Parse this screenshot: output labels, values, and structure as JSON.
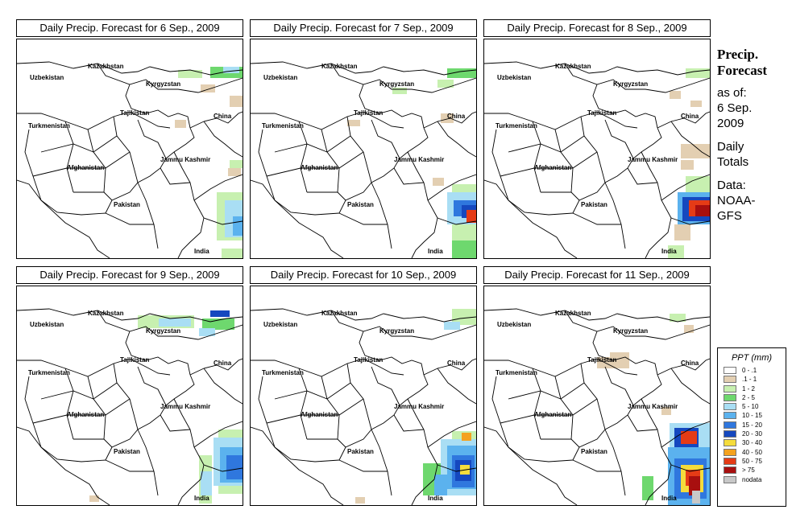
{
  "panels": [
    {
      "title": "Daily Precip. Forecast for  6 Sep., 2009"
    },
    {
      "title": "Daily Precip. Forecast for  7 Sep., 2009"
    },
    {
      "title": "Daily Precip. Forecast for  8 Sep., 2009"
    },
    {
      "title": "Daily Precip. Forecast for  9 Sep., 2009"
    },
    {
      "title": "Daily Precip. Forecast for  10 Sep., 2009"
    },
    {
      "title": "Daily Precip. Forecast for  11 Sep., 2009"
    }
  ],
  "map_labels": {
    "kazakhstan": "Kazakhstan",
    "uzbekistan": "Uzbekistan",
    "kyrgyzstan": "Kyrgyzstan",
    "tajikistan": "Tajikistan",
    "turkmenistan": "Turkmenistan",
    "china": "China",
    "jammu_kashmir": "Jammu Kashmir",
    "afghanistan": "Afghanistan",
    "pakistan": "Pakistan",
    "india": "India"
  },
  "sidebar": {
    "title_line1": "Precip.",
    "title_line2": "Forecast",
    "asof_line1": "as of:",
    "asof_line2": "6 Sep.",
    "asof_line3": "2009",
    "totals_line1": "Daily",
    "totals_line2": "Totals",
    "data_line1": "Data:",
    "data_line2": "NOAA-",
    "data_line3": "GFS"
  },
  "legend": {
    "title": "PPT (mm)",
    "items": [
      {
        "label": "0 - .1",
        "color": "#ffffff"
      },
      {
        "label": ".1 - 1",
        "color": "#e3cfb2"
      },
      {
        "label": "1 - 2",
        "color": "#c7f0b0"
      },
      {
        "label": "2 - 5",
        "color": "#6ed86e"
      },
      {
        "label": "5 - 10",
        "color": "#a9def4"
      },
      {
        "label": "10 - 15",
        "color": "#5bb2ee"
      },
      {
        "label": "15 - 20",
        "color": "#2f77de"
      },
      {
        "label": "20 - 30",
        "color": "#1548bf"
      },
      {
        "label": "30 - 40",
        "color": "#f5dc3c"
      },
      {
        "label": "40 - 50",
        "color": "#f4a21f"
      },
      {
        "label": "50 - 75",
        "color": "#e53b16"
      },
      {
        "label": "> 75",
        "color": "#a80f0f"
      },
      {
        "label": "nodata",
        "color": "#c8c8c8"
      }
    ]
  }
}
